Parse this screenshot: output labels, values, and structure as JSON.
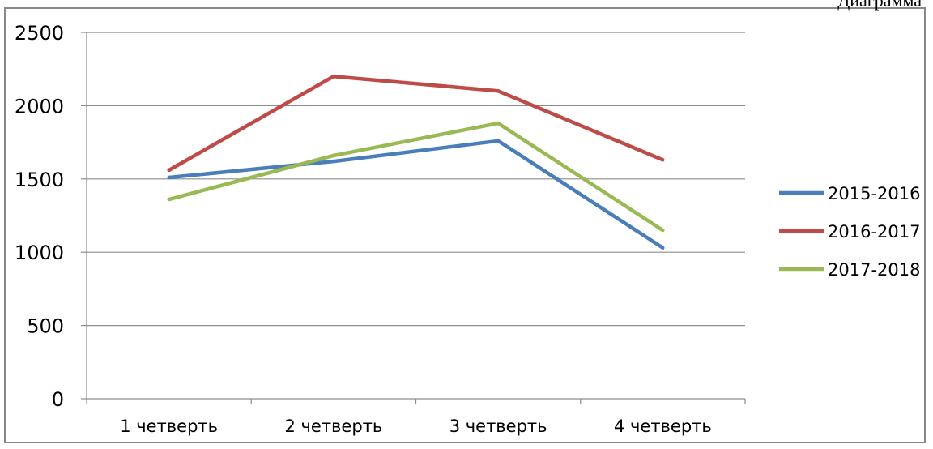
{
  "caption": "Диаграмма",
  "chart_data": {
    "type": "line",
    "categories": [
      "1 четверть",
      "2 четверть",
      "3 четверть",
      "4 четверть"
    ],
    "series": [
      {
        "name": "2015-2016",
        "values": [
          1510,
          1620,
          1760,
          1030
        ],
        "color": "#4a7ebb"
      },
      {
        "name": "2016-2017",
        "values": [
          1560,
          2200,
          2100,
          1630
        ],
        "color": "#be4b48"
      },
      {
        "name": "2017-2018",
        "values": [
          1360,
          1660,
          1880,
          1150
        ],
        "color": "#98b954"
      }
    ],
    "yticks": [
      0,
      500,
      1000,
      1500,
      2000,
      2500
    ],
    "ylim": [
      0,
      2500
    ],
    "title": "",
    "xlabel": "",
    "ylabel": "",
    "grid": true,
    "legend": "right"
  }
}
